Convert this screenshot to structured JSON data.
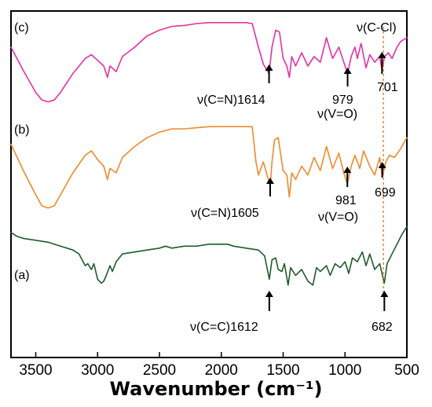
{
  "chart_data": {
    "type": "line",
    "title": "",
    "xlabel": "Wavenumber (cm⁻¹)",
    "ylabel": "",
    "xlim": [
      3700,
      500
    ],
    "x_ticks": [
      3500,
      3000,
      2500,
      2000,
      1500,
      1000,
      500
    ],
    "grid": false,
    "legend": "none",
    "series": [
      {
        "name": "(c)",
        "color": "#e6329e",
        "points": [
          [
            3700,
            0.3
          ],
          [
            3600,
            0.55
          ],
          [
            3500,
            0.78
          ],
          [
            3450,
            0.86
          ],
          [
            3400,
            0.88
          ],
          [
            3350,
            0.86
          ],
          [
            3300,
            0.78
          ],
          [
            3200,
            0.58
          ],
          [
            3100,
            0.42
          ],
          [
            3050,
            0.38
          ],
          [
            3000,
            0.44
          ],
          [
            2950,
            0.5
          ],
          [
            2920,
            0.62
          ],
          [
            2900,
            0.5
          ],
          [
            2850,
            0.56
          ],
          [
            2800,
            0.4
          ],
          [
            2700,
            0.3
          ],
          [
            2600,
            0.18
          ],
          [
            2500,
            0.12
          ],
          [
            2400,
            0.08
          ],
          [
            2300,
            0.07
          ],
          [
            2200,
            0.05
          ],
          [
            2100,
            0.04
          ],
          [
            2000,
            0.04
          ],
          [
            1900,
            0.04
          ],
          [
            1800,
            0.04
          ],
          [
            1750,
            0.05
          ],
          [
            1700,
            0.3
          ],
          [
            1660,
            0.48
          ],
          [
            1614,
            0.58
          ],
          [
            1590,
            0.3
          ],
          [
            1560,
            0.12
          ],
          [
            1530,
            0.14
          ],
          [
            1500,
            0.42
          ],
          [
            1470,
            0.5
          ],
          [
            1450,
            0.62
          ],
          [
            1430,
            0.4
          ],
          [
            1400,
            0.5
          ],
          [
            1350,
            0.36
          ],
          [
            1300,
            0.5
          ],
          [
            1250,
            0.4
          ],
          [
            1200,
            0.46
          ],
          [
            1150,
            0.2
          ],
          [
            1100,
            0.42
          ],
          [
            1050,
            0.3
          ],
          [
            1000,
            0.5
          ],
          [
            979,
            0.58
          ],
          [
            950,
            0.4
          ],
          [
            920,
            0.3
          ],
          [
            900,
            0.42
          ],
          [
            870,
            0.26
          ],
          [
            830,
            0.52
          ],
          [
            800,
            0.38
          ],
          [
            760,
            0.46
          ],
          [
            720,
            0.4
          ],
          [
            701,
            0.54
          ],
          [
            680,
            0.4
          ],
          [
            650,
            0.36
          ],
          [
            620,
            0.42
          ],
          [
            580,
            0.3
          ],
          [
            550,
            0.24
          ],
          [
            500,
            0.2
          ]
        ]
      },
      {
        "name": "(b)",
        "color": "#f08a2c",
        "points": [
          [
            3700,
            0.24
          ],
          [
            3600,
            0.48
          ],
          [
            3500,
            0.7
          ],
          [
            3450,
            0.8
          ],
          [
            3400,
            0.82
          ],
          [
            3350,
            0.8
          ],
          [
            3300,
            0.7
          ],
          [
            3200,
            0.5
          ],
          [
            3100,
            0.34
          ],
          [
            3050,
            0.3
          ],
          [
            3000,
            0.38
          ],
          [
            2950,
            0.44
          ],
          [
            2920,
            0.56
          ],
          [
            2900,
            0.46
          ],
          [
            2850,
            0.5
          ],
          [
            2800,
            0.36
          ],
          [
            2700,
            0.26
          ],
          [
            2600,
            0.18
          ],
          [
            2500,
            0.13
          ],
          [
            2400,
            0.1
          ],
          [
            2300,
            0.1
          ],
          [
            2200,
            0.09
          ],
          [
            2100,
            0.08
          ],
          [
            2000,
            0.08
          ],
          [
            1900,
            0.08
          ],
          [
            1800,
            0.08
          ],
          [
            1750,
            0.08
          ],
          [
            1720,
            0.4
          ],
          [
            1700,
            0.52
          ],
          [
            1660,
            0.4
          ],
          [
            1605,
            0.62
          ],
          [
            1590,
            0.4
          ],
          [
            1570,
            0.2
          ],
          [
            1540,
            0.18
          ],
          [
            1500,
            0.48
          ],
          [
            1470,
            0.52
          ],
          [
            1450,
            0.72
          ],
          [
            1430,
            0.5
          ],
          [
            1400,
            0.56
          ],
          [
            1350,
            0.44
          ],
          [
            1300,
            0.52
          ],
          [
            1250,
            0.36
          ],
          [
            1200,
            0.48
          ],
          [
            1150,
            0.26
          ],
          [
            1100,
            0.46
          ],
          [
            1050,
            0.32
          ],
          [
            1010,
            0.5
          ],
          [
            981,
            0.6
          ],
          [
            950,
            0.44
          ],
          [
            920,
            0.34
          ],
          [
            880,
            0.46
          ],
          [
            850,
            0.3
          ],
          [
            800,
            0.44
          ],
          [
            760,
            0.52
          ],
          [
            720,
            0.36
          ],
          [
            699,
            0.54
          ],
          [
            670,
            0.4
          ],
          [
            640,
            0.34
          ],
          [
            600,
            0.36
          ],
          [
            550,
            0.28
          ],
          [
            500,
            0.18
          ]
        ]
      },
      {
        "name": "(a)",
        "color": "#1f5b2a",
        "points": [
          [
            3700,
            0.08
          ],
          [
            3650,
            0.12
          ],
          [
            3600,
            0.14
          ],
          [
            3500,
            0.16
          ],
          [
            3400,
            0.18
          ],
          [
            3300,
            0.22
          ],
          [
            3200,
            0.26
          ],
          [
            3150,
            0.3
          ],
          [
            3100,
            0.42
          ],
          [
            3080,
            0.4
          ],
          [
            3050,
            0.46
          ],
          [
            3030,
            0.4
          ],
          [
            3000,
            0.56
          ],
          [
            2970,
            0.6
          ],
          [
            2950,
            0.58
          ],
          [
            2930,
            0.52
          ],
          [
            2900,
            0.42
          ],
          [
            2880,
            0.48
          ],
          [
            2850,
            0.38
          ],
          [
            2800,
            0.3
          ],
          [
            2700,
            0.28
          ],
          [
            2600,
            0.26
          ],
          [
            2500,
            0.24
          ],
          [
            2450,
            0.22
          ],
          [
            2400,
            0.24
          ],
          [
            2300,
            0.22
          ],
          [
            2200,
            0.22
          ],
          [
            2100,
            0.2
          ],
          [
            2000,
            0.2
          ],
          [
            1950,
            0.2
          ],
          [
            1900,
            0.22
          ],
          [
            1800,
            0.24
          ],
          [
            1700,
            0.26
          ],
          [
            1650,
            0.32
          ],
          [
            1612,
            0.56
          ],
          [
            1590,
            0.36
          ],
          [
            1560,
            0.34
          ],
          [
            1540,
            0.46
          ],
          [
            1510,
            0.48
          ],
          [
            1490,
            0.4
          ],
          [
            1460,
            0.62
          ],
          [
            1440,
            0.44
          ],
          [
            1400,
            0.52
          ],
          [
            1350,
            0.46
          ],
          [
            1300,
            0.58
          ],
          [
            1260,
            0.62
          ],
          [
            1230,
            0.44
          ],
          [
            1200,
            0.48
          ],
          [
            1150,
            0.42
          ],
          [
            1120,
            0.52
          ],
          [
            1080,
            0.4
          ],
          [
            1040,
            0.44
          ],
          [
            1000,
            0.38
          ],
          [
            970,
            0.5
          ],
          [
            940,
            0.34
          ],
          [
            900,
            0.38
          ],
          [
            860,
            0.28
          ],
          [
            830,
            0.42
          ],
          [
            800,
            0.3
          ],
          [
            760,
            0.46
          ],
          [
            720,
            0.4
          ],
          [
            682,
            0.6
          ],
          [
            660,
            0.4
          ],
          [
            620,
            0.3
          ],
          [
            580,
            0.2
          ],
          [
            540,
            0.1
          ],
          [
            500,
            0.02
          ]
        ]
      }
    ],
    "annotations": {
      "c_panel": "(c)",
      "b_panel": "(b)",
      "a_panel": "(a)",
      "c1": "ν(C=N)1614",
      "c2": "979",
      "c2b": "ν(V=O)",
      "c3": "701",
      "c4": "ν(C-Cl)",
      "b1": "ν(C=N)1605",
      "b2": "981",
      "b2b": "ν(V=O)",
      "b3": "699",
      "a1": "ν(C=C)1612",
      "a2": "682"
    }
  }
}
